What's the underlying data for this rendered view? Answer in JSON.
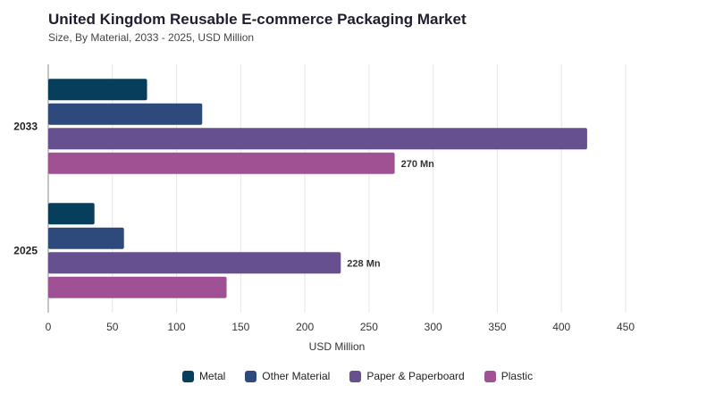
{
  "title": "United Kingdom Reusable E-commerce Packaging Market",
  "subtitle": "Size, By Material, 2033 - 2025, USD Million",
  "chart_data": {
    "type": "bar",
    "orientation": "horizontal",
    "categories": [
      "2033",
      "2025"
    ],
    "series": [
      {
        "name": "Metal",
        "color": "#063e5b",
        "values": [
          77,
          36
        ]
      },
      {
        "name": "Other Material",
        "color": "#2e4a7d",
        "values": [
          120,
          59
        ]
      },
      {
        "name": "Paper & Paperboard",
        "color": "#66508f",
        "values": [
          420,
          228
        ]
      },
      {
        "name": "Plastic",
        "color": "#a05194",
        "values": [
          270,
          139
        ]
      }
    ],
    "data_labels": [
      {
        "category": "2033",
        "series": "Plastic",
        "text": "270 Mn"
      },
      {
        "category": "2025",
        "series": "Paper & Paperboard",
        "text": "228 Mn"
      }
    ],
    "xlabel": "USD Million",
    "ylabel": "",
    "xlim": [
      0,
      450
    ],
    "xticks": [
      0,
      50,
      100,
      150,
      200,
      250,
      300,
      350,
      400,
      450
    ],
    "grid": true,
    "legend_position": "bottom"
  }
}
